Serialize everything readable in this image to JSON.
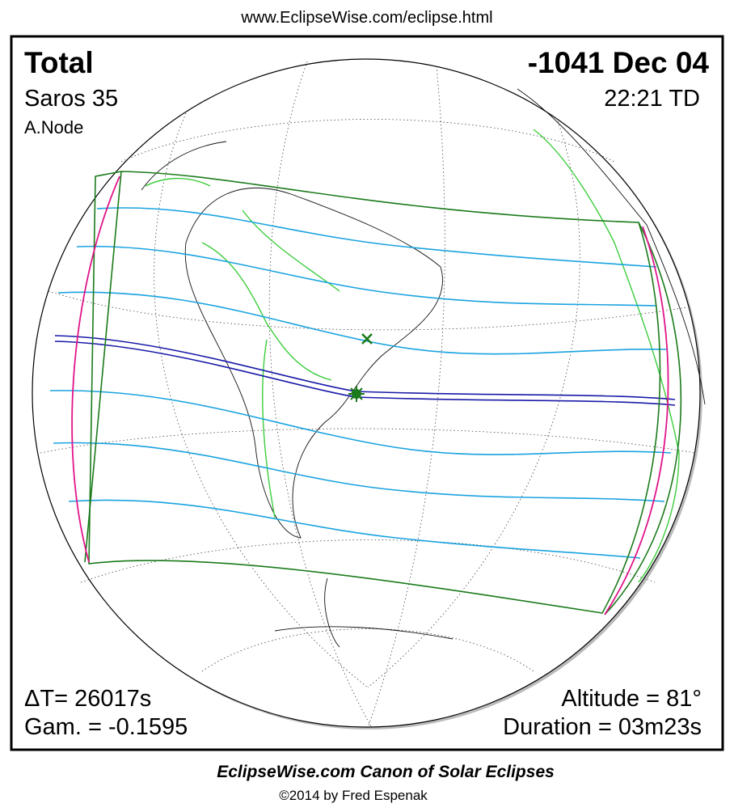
{
  "header": {
    "url": "www.EclipseWise.com/eclipse.html"
  },
  "panel": {
    "top_left": {
      "eclipse_type": "Total",
      "saros": "Saros  35",
      "node": "A.Node"
    },
    "top_right": {
      "date": "-1041 Dec 04",
      "time": "22:21 TD"
    },
    "bottom_left": {
      "delta_t": "ΔT=  26017s",
      "gamma": "Gam. = -0.1595"
    },
    "bottom_right": {
      "altitude": "Altitude = 81°",
      "duration": "Duration = 03m23s"
    }
  },
  "footer": {
    "title": "EclipseWise.com Canon of Solar Eclipses",
    "copyright": "©2014 by Fred Espenak"
  }
}
